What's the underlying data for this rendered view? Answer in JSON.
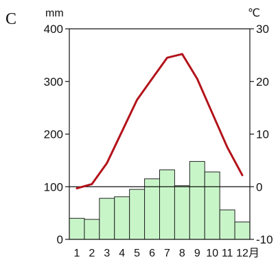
{
  "chart_data": {
    "type": "bar+line",
    "panel_label": "C",
    "categories": [
      "1",
      "2",
      "3",
      "4",
      "5",
      "6",
      "7",
      "8",
      "9",
      "10",
      "11",
      "12"
    ],
    "month_suffix": "月",
    "left_axis": {
      "unit": "mm",
      "range": [
        0,
        400
      ],
      "ticks": [
        "0",
        "100",
        "200",
        "300",
        "400"
      ]
    },
    "right_axis": {
      "unit": "℃",
      "range": [
        -10,
        30
      ],
      "ticks": [
        "-10",
        "0",
        "10",
        "20",
        "30"
      ]
    },
    "series": [
      {
        "type": "bar",
        "axis": "left",
        "color": "#c8f5c8",
        "values": [
          40,
          38,
          78,
          81,
          95,
          115,
          132,
          102,
          148,
          128,
          56,
          33
        ]
      },
      {
        "type": "line",
        "axis": "right",
        "color": "#b3121a",
        "values": [
          -0.3,
          0.5,
          4.5,
          10.5,
          16.5,
          20.5,
          24.5,
          25.2,
          20.5,
          14,
          7.5,
          2.2
        ]
      }
    ],
    "reference_line": {
      "axis": "right",
      "value": 0
    }
  }
}
